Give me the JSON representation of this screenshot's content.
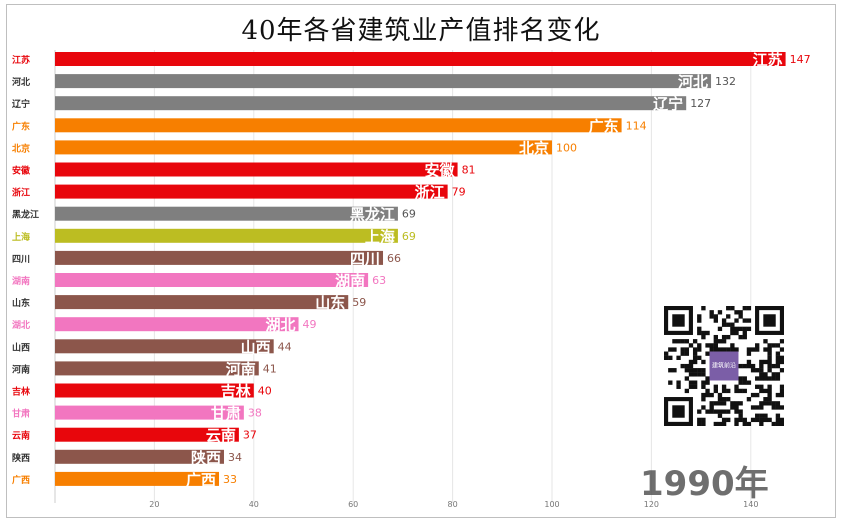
{
  "title": "40年各省建筑业产值排名变化",
  "year_label": "1990年",
  "watermark": {
    "qr_caption": "建筑前沿"
  },
  "chart_data": {
    "type": "bar",
    "orientation": "horizontal",
    "title": "40年各省建筑业产值排名变化",
    "xlabel": "",
    "ylabel": "",
    "xlim": [
      0,
      150
    ],
    "x_ticks": [
      20,
      40,
      60,
      80,
      100,
      120,
      140
    ],
    "grid": true,
    "categories": [
      "江苏",
      "河北",
      "辽宁",
      "广东",
      "北京",
      "安徽",
      "浙江",
      "黑龙江",
      "上海",
      "四川",
      "湖南",
      "山东",
      "湖北",
      "山西",
      "河南",
      "吉林",
      "甘肃",
      "云南",
      "陕西",
      "广西"
    ],
    "values": [
      147,
      132,
      127,
      114,
      100,
      81,
      79,
      69,
      69,
      66,
      63,
      59,
      49,
      44,
      41,
      40,
      38,
      37,
      34,
      33
    ],
    "colors": [
      "#e8060c",
      "#7f7f7f",
      "#7f7f7f",
      "#f77f00",
      "#f77f00",
      "#e8060c",
      "#e8060c",
      "#7f7f7f",
      "#bcbd22",
      "#8c564b",
      "#f276c0",
      "#8c564b",
      "#f276c0",
      "#8c564b",
      "#8c564b",
      "#e8060c",
      "#f276c0",
      "#e8060c",
      "#8c564b",
      "#f77f00"
    ]
  }
}
